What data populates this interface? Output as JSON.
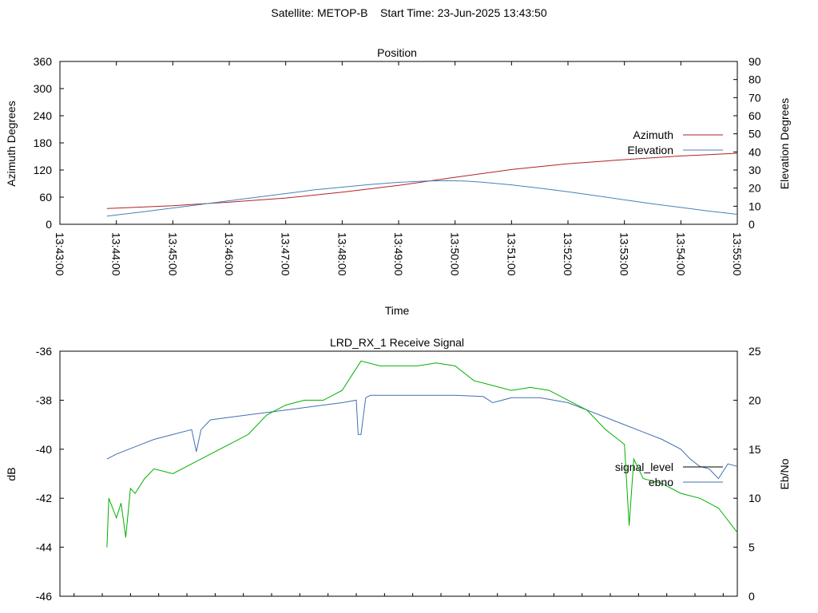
{
  "header": {
    "title": "Satellite: METOP-B    Start Time: 23-Jun-2025 13:43:50"
  },
  "chart_data": [
    {
      "type": "line",
      "title": "Position",
      "xlabel": "Time",
      "ylabel": "Azimuth Degrees",
      "y2label": "Elevation Degrees",
      "x_ticks": [
        "13:43:00",
        "13:44:00",
        "13:45:00",
        "13:46:00",
        "13:47:00",
        "13:48:00",
        "13:49:00",
        "13:50:00",
        "13:51:00",
        "13:52:00",
        "13:53:00",
        "13:54:00",
        "13:55:00"
      ],
      "xlim": [
        "13:43:00",
        "13:55:00"
      ],
      "ylim": [
        0,
        360
      ],
      "y_ticks": [
        0,
        60,
        120,
        180,
        240,
        300,
        360
      ],
      "y2lim": [
        0,
        90
      ],
      "y2_ticks": [
        0,
        10,
        20,
        30,
        40,
        50,
        60,
        70,
        80,
        90
      ],
      "legend": "right",
      "series": [
        {
          "name": "Azimuth",
          "axis": "y",
          "color": "#b22222",
          "x": [
            "13:43:50",
            "13:45:00",
            "13:46:00",
            "13:47:00",
            "13:48:00",
            "13:49:00",
            "13:50:00",
            "13:51:00",
            "13:52:00",
            "13:53:00",
            "13:54:00",
            "13:55:00"
          ],
          "values": [
            35,
            41,
            49,
            58,
            71,
            86,
            104,
            121,
            134,
            143,
            151,
            157
          ]
        },
        {
          "name": "Elevation",
          "axis": "y2",
          "color": "#4682b4",
          "x": [
            "13:43:50",
            "13:44:30",
            "13:45:00",
            "13:45:30",
            "13:46:00",
            "13:46:30",
            "13:47:00",
            "13:47:30",
            "13:48:00",
            "13:48:30",
            "13:49:00",
            "13:49:30",
            "13:49:50",
            "13:50:10",
            "13:50:30",
            "13:51:00",
            "13:51:30",
            "13:52:00",
            "13:52:30",
            "13:53:00",
            "13:53:30",
            "13:54:00",
            "13:54:30",
            "13:55:00"
          ],
          "values": [
            4.5,
            7,
            9,
            11,
            13,
            15,
            17,
            19,
            20.5,
            22,
            23.2,
            23.9,
            24.1,
            23.9,
            23.2,
            21.8,
            20,
            18,
            15.8,
            13.5,
            11.3,
            9.3,
            7.3,
            5.5
          ]
        }
      ]
    },
    {
      "type": "line",
      "title": "LRD_RX_1 Receive Signal",
      "xlabel": "",
      "ylabel": "dB",
      "y2label": "Eb/No",
      "ylim": [
        -46,
        -36
      ],
      "y_ticks": [
        -46,
        -44,
        -42,
        -40,
        -38,
        -36
      ],
      "y2lim": [
        0,
        25
      ],
      "y2_ticks": [
        0,
        5,
        10,
        15,
        20,
        25
      ],
      "xlim": [
        "13:43:00",
        "13:55:00"
      ],
      "legend": "right",
      "series": [
        {
          "name": "signal_level",
          "axis": "y",
          "color": "#4070b0",
          "legend_color": "#000000",
          "x": [
            "13:43:50",
            "13:44:00",
            "13:44:20",
            "13:44:40",
            "13:45:00",
            "13:45:20",
            "13:45:25",
            "13:45:30",
            "13:45:40",
            "13:46:00",
            "13:46:20",
            "13:46:40",
            "13:47:00",
            "13:47:20",
            "13:47:40",
            "13:48:00",
            "13:48:15",
            "13:48:17",
            "13:48:20",
            "13:48:25",
            "13:48:30",
            "13:48:40",
            "13:49:00",
            "13:49:30",
            "13:50:00",
            "13:50:30",
            "13:50:40",
            "13:51:00",
            "13:51:30",
            "13:52:00",
            "13:52:20",
            "13:52:40",
            "13:53:00",
            "13:53:20",
            "13:53:40",
            "13:54:00",
            "13:54:10",
            "13:54:20",
            "13:54:30",
            "13:54:40",
            "13:54:50",
            "13:55:00"
          ],
          "values": [
            -40.4,
            -40.2,
            -39.9,
            -39.6,
            -39.4,
            -39.2,
            -40.1,
            -39.2,
            -38.8,
            -38.7,
            -38.6,
            -38.5,
            -38.4,
            -38.3,
            -38.2,
            -38.1,
            -38.0,
            -39.4,
            -39.4,
            -37.9,
            -37.8,
            -37.8,
            -37.8,
            -37.8,
            -37.8,
            -37.85,
            -38.1,
            -37.9,
            -37.9,
            -38.1,
            -38.4,
            -38.7,
            -39.0,
            -39.3,
            -39.6,
            -40.0,
            -40.4,
            -40.7,
            -40.8,
            -41.2,
            -40.6,
            -40.7
          ]
        },
        {
          "name": "ebno",
          "axis": "y2",
          "color": "#00b000",
          "legend_color": "#4070b0",
          "x": [
            "13:43:50",
            "13:43:52",
            "13:44:00",
            "13:44:05",
            "13:44:10",
            "13:44:15",
            "13:44:20",
            "13:44:30",
            "13:44:40",
            "13:45:00",
            "13:45:20",
            "13:45:40",
            "13:46:00",
            "13:46:20",
            "13:46:40",
            "13:47:00",
            "13:47:20",
            "13:47:40",
            "13:48:00",
            "13:48:10",
            "13:48:20",
            "13:48:40",
            "13:49:00",
            "13:49:20",
            "13:49:40",
            "13:50:00",
            "13:50:20",
            "13:50:40",
            "13:51:00",
            "13:51:20",
            "13:51:40",
            "13:52:00",
            "13:52:20",
            "13:52:40",
            "13:53:00",
            "13:53:05",
            "13:53:10",
            "13:53:20",
            "13:53:40",
            "13:54:00",
            "13:54:20",
            "13:54:40",
            "13:55:00"
          ],
          "values": [
            5,
            10,
            8,
            9.5,
            6,
            11,
            10.5,
            12,
            13,
            12.5,
            13.5,
            14.5,
            15.5,
            16.5,
            18.5,
            19.5,
            20,
            20,
            21,
            22.5,
            24,
            23.5,
            23.5,
            23.5,
            23.8,
            23.5,
            22,
            21.5,
            21,
            21.3,
            21,
            20,
            19,
            17,
            15.5,
            7.2,
            14,
            12,
            11.5,
            10.5,
            10,
            9,
            6.5
          ]
        }
      ]
    }
  ]
}
